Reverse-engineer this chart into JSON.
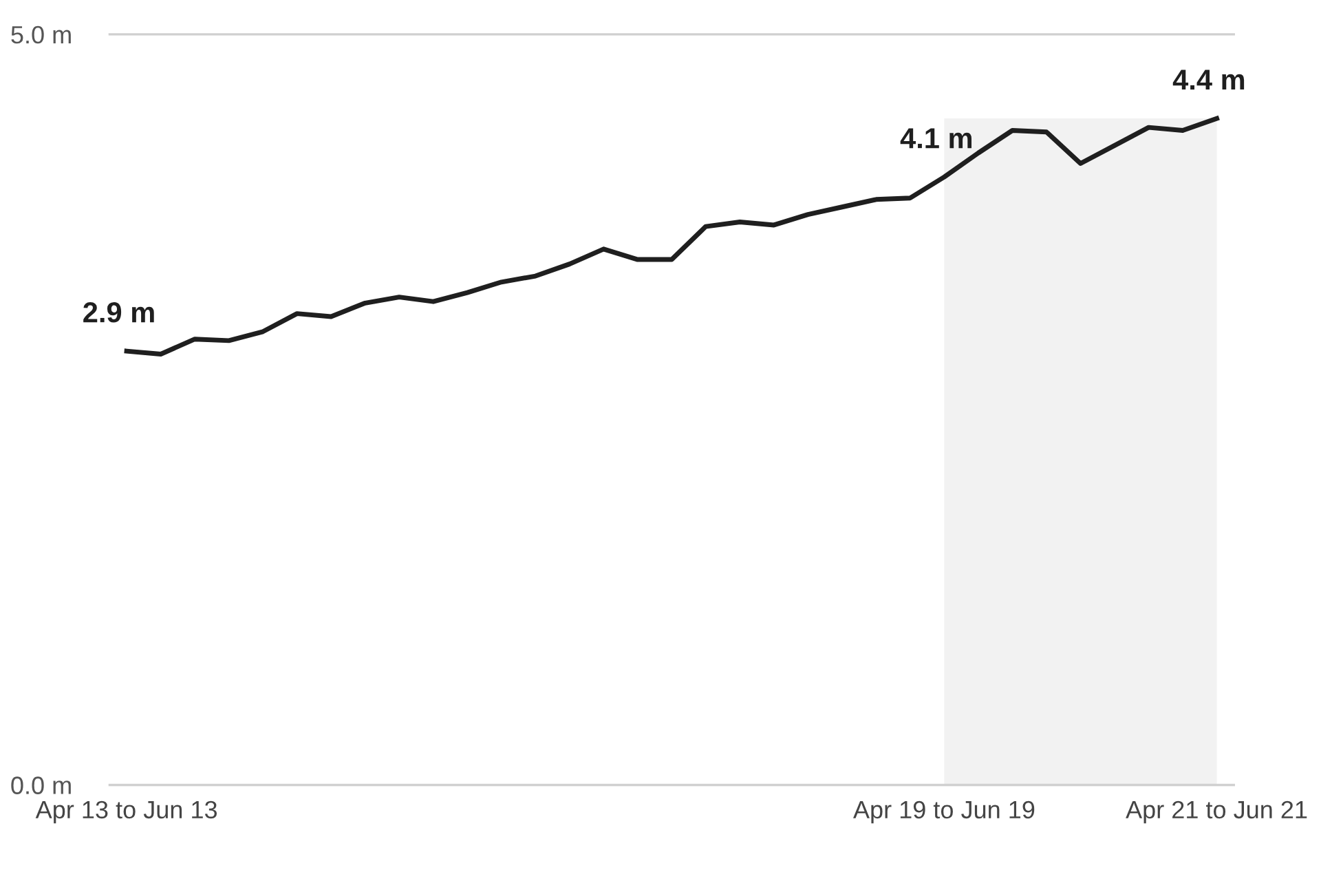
{
  "chart_data": {
    "type": "line",
    "categories": [
      "Apr 13 to Jun 13",
      null,
      null,
      null,
      null,
      null,
      null,
      null,
      null,
      null,
      null,
      null,
      null,
      null,
      null,
      null,
      null,
      null,
      null,
      null,
      null,
      null,
      null,
      null,
      "Apr 19 to Jun 19",
      null,
      null,
      null,
      null,
      null,
      null,
      null,
      "Apr 21 to Jun 21"
    ],
    "series": [
      {
        "color": "#1f1f1f",
        "values": [
          2.89,
          2.87,
          2.97,
          2.96,
          3.02,
          3.14,
          3.12,
          3.21,
          3.25,
          3.22,
          3.28,
          3.35,
          3.39,
          3.47,
          3.57,
          3.5,
          3.5,
          3.72,
          3.75,
          3.73,
          3.8,
          3.85,
          3.9,
          3.91,
          4.05,
          4.21,
          4.36,
          4.35,
          4.14,
          4.26,
          4.38,
          4.36,
          4.44
        ],
        "value_labels": [
          "2.9 m",
          null,
          null,
          null,
          null,
          null,
          null,
          null,
          null,
          null,
          null,
          null,
          null,
          null,
          null,
          null,
          null,
          null,
          null,
          null,
          null,
          null,
          null,
          null,
          "4.1 m",
          null,
          null,
          null,
          null,
          null,
          null,
          null,
          "4.4 m"
        ]
      }
    ],
    "ylim": [
      0,
      5
    ],
    "yticks": [
      {
        "value": 0,
        "label": "0.0 m"
      },
      {
        "value": 5,
        "label": "5.0 m"
      }
    ],
    "bands": [
      {
        "axis": "x",
        "from": "Apr 19 to Jun 19",
        "to": "Apr 21 to Jun 21",
        "color": "#f2f2f2"
      }
    ],
    "marker": "none",
    "line_style": "solid"
  }
}
